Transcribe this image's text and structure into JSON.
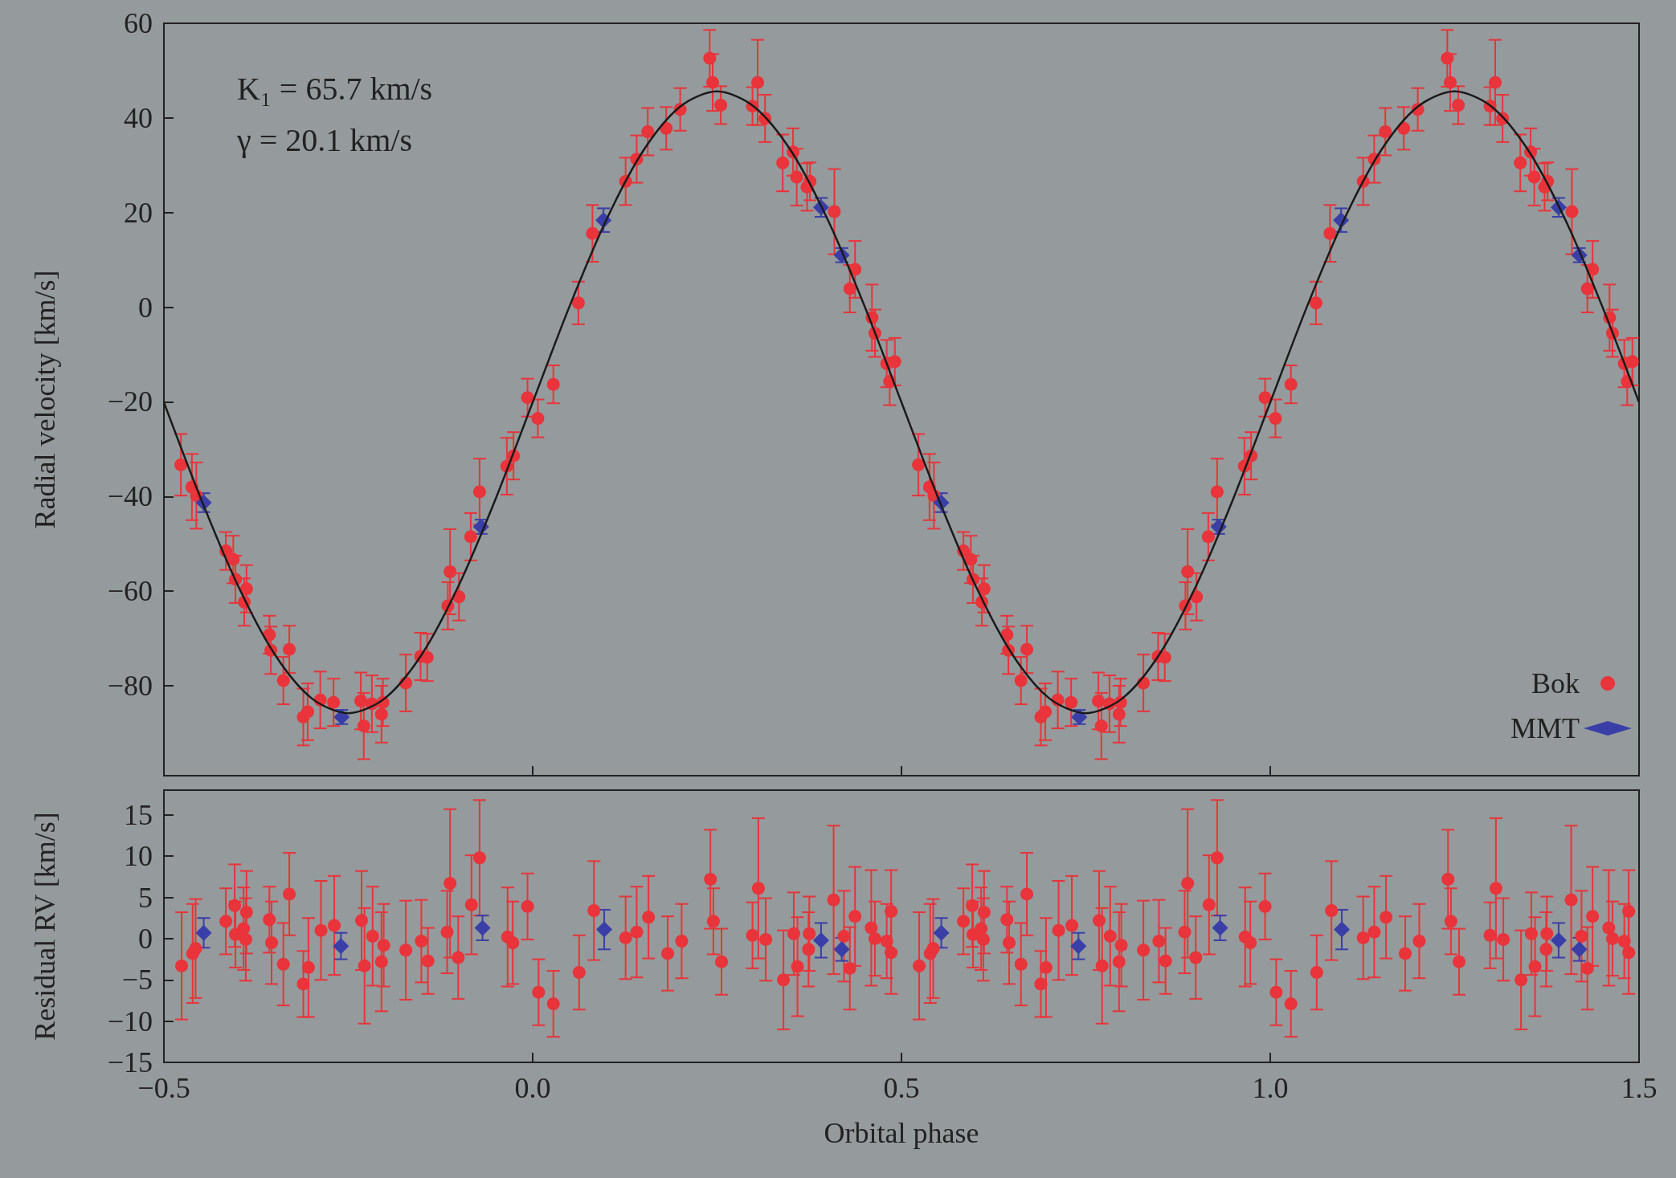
{
  "chart_data": [
    {
      "type": "scatter",
      "ylabel": "Radial velocity [km/s]",
      "annotations": [
        "K₁ = 65.7 km/s",
        "γ = 20.1 km/s"
      ],
      "legend": "bottom right",
      "tick_labels": "y",
      "xlim": [
        -0.5,
        1.5
      ],
      "xticks": [
        {
          "value": -0.5,
          "label": null
        },
        {
          "value": 0,
          "label": null
        },
        {
          "value": 0.5,
          "label": null
        },
        {
          "value": 1,
          "label": null
        },
        {
          "value": 1.5,
          "label": null
        }
      ],
      "ylim": [
        -99,
        60
      ],
      "yticks": [
        {
          "value": -80,
          "label": "−80"
        },
        {
          "value": -60,
          "label": "−60"
        },
        {
          "value": -40,
          "label": "−40"
        },
        {
          "value": -20,
          "label": "−20"
        },
        0,
        20,
        40,
        60
      ],
      "series": [
        {
          "type": "line",
          "color": "#1a1a1a",
          "x": [
            -0.5,
            -0.45,
            -0.4,
            -0.35,
            -0.3,
            -0.25,
            -0.2,
            -0.15,
            -0.1,
            -0.05,
            0,
            0.05,
            0.1,
            0.15,
            0.2,
            0.25,
            0.3,
            0.35,
            0.4,
            0.45,
            0.5,
            0.55,
            0.6,
            0.65,
            0.7,
            0.75,
            0.8,
            0.85,
            0.9,
            0.95,
            1,
            1.05,
            1.1,
            1.15,
            1.2,
            1.25,
            1.3,
            1.35,
            1.4,
            1.45,
            1.5
          ],
          "values": [
            -20.1,
            -40.4,
            -58.7,
            -73.3,
            -82.6,
            -85.8,
            -82.6,
            -73.3,
            -58.7,
            -40.4,
            -20.1,
            0.2,
            18.5,
            33.1,
            42.4,
            45.6,
            42.4,
            33.1,
            18.5,
            0.2,
            -20.1,
            -40.4,
            -58.7,
            -73.3,
            -82.6,
            -85.8,
            -82.6,
            -73.3,
            -58.7,
            -40.4,
            -20.1,
            0.2,
            18.5,
            33.1,
            42.4,
            45.6,
            42.4,
            33.1,
            18.5,
            0.2,
            -20.1
          ]
        },
        {
          "name": "Bok",
          "color": "#e8343a",
          "marker": "circle",
          "x": [
            -0.477,
            -0.462,
            -0.456,
            -0.416,
            -0.406,
            -0.403,
            -0.388,
            -0.391,
            -0.357,
            -0.355,
            -0.338,
            -0.33,
            -0.311,
            -0.305,
            -0.288,
            -0.27,
            -0.233,
            -0.229,
            -0.218,
            -0.205,
            -0.203,
            -0.172,
            -0.152,
            -0.143,
            -0.115,
            -0.112,
            -0.1,
            -0.084,
            -0.072,
            -0.035,
            -0.026,
            -0.007,
            0.007,
            0.028,
            0.062,
            0.081,
            0.126,
            0.141,
            0.156,
            0.181,
            0.2,
            0.24,
            0.244,
            0.255,
            0.298,
            0.305,
            0.315,
            0.339,
            0.353,
            0.358,
            0.372,
            0.376,
            0.409,
            0.437,
            0.43,
            0.46,
            0.464,
            0.48,
            0.491,
            0.484,
            0.523,
            0.538,
            0.544,
            0.584,
            0.594,
            0.597,
            0.612,
            0.609,
            0.643,
            0.645,
            0.662,
            0.67,
            0.689,
            0.695,
            0.712,
            0.73,
            0.767,
            0.771,
            0.782,
            0.795,
            0.797,
            0.828,
            0.848,
            0.857,
            0.885,
            0.888,
            0.9,
            0.916,
            0.928,
            0.965,
            0.974,
            0.993,
            1.007,
            1.028,
            1.062,
            1.081,
            1.126,
            1.141,
            1.156,
            1.181,
            1.2,
            1.24,
            1.244,
            1.255,
            1.298,
            1.305,
            1.315,
            1.339,
            1.353,
            1.358,
            1.372,
            1.376,
            1.409,
            1.437,
            1.43,
            1.46,
            1.464,
            1.48,
            1.491,
            1.484
          ],
          "values": [
            -33.3,
            -38.0,
            -39.8,
            -51.5,
            -53.3,
            -57.5,
            -59.5,
            -62.3,
            -69.2,
            -72.5,
            -78.9,
            -72.3,
            -86.6,
            -85.5,
            -83.0,
            -83.5,
            -83.2,
            -88.5,
            -83.8,
            -86.0,
            -83.5,
            -79.4,
            -73.8,
            -74.0,
            -63.1,
            -55.9,
            -61.2,
            -48.5,
            -39.0,
            -33.6,
            -31.4,
            -19.1,
            -23.5,
            -16.3,
            0.9,
            15.6,
            26.6,
            31.3,
            37.1,
            37.8,
            41.8,
            52.6,
            47.5,
            42.7,
            42.5,
            47.5,
            39.9,
            30.5,
            32.8,
            27.5,
            25.4,
            26.6,
            20.2,
            8.0,
            3.9,
            -2.2,
            -5.5,
            -11.9,
            -11.5,
            -15.7,
            -33.3,
            -38.0,
            -39.8,
            -51.5,
            -53.3,
            -57.5,
            -59.5,
            -62.3,
            -69.2,
            -72.5,
            -78.9,
            -72.3,
            -86.6,
            -85.5,
            -83.0,
            -83.5,
            -83.2,
            -88.5,
            -83.8,
            -86.0,
            -83.5,
            -79.4,
            -73.8,
            -74.0,
            -63.1,
            -55.9,
            -61.2,
            -48.5,
            -39.0,
            -33.6,
            -31.4,
            -19.1,
            -23.5,
            -16.3,
            0.9,
            15.6,
            26.6,
            31.3,
            37.1,
            37.8,
            41.8,
            52.6,
            47.5,
            42.7,
            42.5,
            47.5,
            39.9,
            30.5,
            32.8,
            27.5,
            25.4,
            26.6,
            20.2,
            8.0,
            3.9,
            -2.2,
            -5.5,
            -11.9,
            -11.5,
            -15.7
          ],
          "errors": [
            6.5,
            7,
            7,
            4,
            5,
            5,
            5,
            5,
            4,
            5,
            5,
            5,
            6,
            6,
            6,
            5,
            6,
            7,
            6,
            6,
            5,
            6,
            5,
            5,
            5,
            9,
            5,
            5,
            7,
            6,
            5,
            4,
            4,
            4,
            4.5,
            6,
            5,
            5,
            5,
            4.5,
            4.5,
            6,
            6,
            4,
            4,
            9,
            5,
            6,
            5,
            6,
            5,
            4,
            9,
            6,
            5,
            7,
            5,
            5,
            5,
            5,
            6.5,
            7,
            7,
            4,
            5,
            5,
            5,
            5,
            4,
            5,
            5,
            5,
            6,
            6,
            6,
            5,
            6,
            7,
            6,
            6,
            5,
            6,
            5,
            5,
            5,
            9,
            5,
            5,
            7,
            6,
            5,
            4,
            4,
            4,
            4.5,
            6,
            5,
            5,
            5,
            4.5,
            4.5,
            6,
            6,
            4,
            4,
            9,
            5,
            6,
            5,
            6,
            5,
            4,
            9,
            6,
            5,
            7,
            5,
            5,
            5,
            5
          ]
        },
        {
          "name": "MMT",
          "color": "#3a3fa8",
          "marker": "diamond",
          "x": [
            -0.446,
            -0.259,
            -0.07,
            0.096,
            0.391,
            0.419,
            0.554,
            0.741,
            0.93,
            1.096,
            1.391,
            1.419
          ],
          "values": [
            -41.3,
            -86.6,
            -46.4,
            18.4,
            21.1,
            11.0,
            -41.3,
            -86.6,
            -46.4,
            18.4,
            21.1,
            11.0
          ],
          "errors": [
            2,
            1.5,
            1.5,
            2.5,
            2,
            1.5,
            2,
            1.5,
            1.5,
            2.5,
            2,
            1.5
          ]
        }
      ]
    },
    {
      "type": "scatter",
      "ylabel": "Residual RV [km/s]",
      "xlabel": "Orbital phase",
      "xlim": [
        -0.5,
        1.5
      ],
      "xticks": [
        {
          "value": -0.5,
          "label": "−0.5"
        },
        {
          "value": 0,
          "label": "0.0"
        },
        {
          "value": 0.5,
          "label": "0.5"
        },
        {
          "value": 1,
          "label": "1.0"
        },
        {
          "value": 1.5,
          "label": "1.5"
        }
      ],
      "ylim": [
        -15,
        18
      ],
      "yticks": [
        {
          "value": -15,
          "label": "−15"
        },
        {
          "value": -10,
          "label": "−10"
        },
        {
          "value": -5,
          "label": "−5"
        },
        0,
        5,
        10,
        15
      ],
      "series": [
        {
          "color": "#e8343a",
          "marker": "circle",
          "x": [
            -0.476,
            -0.461,
            -0.457,
            -0.416,
            -0.404,
            -0.403,
            -0.392,
            -0.389,
            -0.388,
            -0.357,
            -0.354,
            -0.338,
            -0.33,
            -0.311,
            -0.304,
            -0.287,
            -0.269,
            -0.232,
            -0.228,
            -0.217,
            -0.205,
            -0.202,
            -0.172,
            -0.151,
            -0.142,
            -0.116,
            -0.112,
            -0.101,
            -0.083,
            -0.072,
            -0.034,
            -0.027,
            -0.007,
            0.008,
            0.028,
            0.063,
            0.083,
            0.126,
            0.141,
            0.157,
            0.183,
            0.202,
            0.241,
            0.245,
            0.256,
            0.298,
            0.306,
            0.316,
            0.34,
            0.354,
            0.359,
            0.374,
            0.375,
            0.408,
            0.422,
            0.43,
            0.437,
            0.459,
            0.464,
            0.48,
            0.486,
            0.486,
            0.524,
            0.539,
            0.543,
            0.584,
            0.596,
            0.597,
            0.608,
            0.611,
            0.612,
            0.643,
            0.646,
            0.662,
            0.67,
            0.689,
            0.696,
            0.713,
            0.731,
            0.768,
            0.772,
            0.783,
            0.795,
            0.798,
            0.828,
            0.849,
            0.858,
            0.884,
            0.888,
            0.899,
            0.917,
            0.928,
            0.966,
            0.973,
            0.993,
            1.008,
            1.028,
            1.063,
            1.083,
            1.126,
            1.141,
            1.157,
            1.183,
            1.202,
            1.241,
            1.245,
            1.256,
            1.298,
            1.306,
            1.316,
            1.34,
            1.354,
            1.359,
            1.374,
            1.375,
            1.408,
            1.422,
            1.43,
            1.437,
            1.459,
            1.464,
            1.48,
            1.486,
            1.486
          ],
          "values": [
            -3.3,
            -1.8,
            -1.2,
            2.1,
            4.0,
            0.5,
            1.2,
            -0.1,
            3.2,
            2.3,
            -0.5,
            -3.1,
            5.4,
            -5.5,
            -3.5,
            1.0,
            1.6,
            2.2,
            -3.3,
            0.3,
            -2.8,
            -0.8,
            -1.4,
            -0.3,
            -2.7,
            0.8,
            6.7,
            -2.3,
            4.1,
            9.8,
            0.2,
            -0.5,
            3.9,
            -6.5,
            -7.9,
            -4.1,
            3.4,
            0.1,
            0.8,
            2.6,
            -1.8,
            -0.3,
            7.2,
            2.1,
            -2.8,
            0.4,
            6.1,
            -0.1,
            -5.0,
            0.6,
            -3.4,
            -1.3,
            0.6,
            4.7,
            0.3,
            -3.6,
            2.7,
            1.3,
            0.0,
            -0.3,
            3.3,
            -1.7,
            -3.3,
            -1.8,
            -1.2,
            2.1,
            4.0,
            0.5,
            1.2,
            -0.1,
            3.2,
            2.3,
            -0.5,
            -3.1,
            5.4,
            -5.5,
            -3.5,
            1.0,
            1.6,
            2.2,
            -3.3,
            0.3,
            -2.8,
            -0.8,
            -1.4,
            -0.3,
            -2.7,
            0.8,
            6.7,
            -2.3,
            4.1,
            9.8,
            0.2,
            -0.5,
            3.9,
            -6.5,
            -7.9,
            -4.1,
            3.4,
            0.1,
            0.8,
            2.6,
            -1.8,
            -0.3,
            7.2,
            2.1,
            -2.8,
            0.4,
            6.1,
            -0.1,
            -5.0,
            0.6,
            -3.4,
            -1.3,
            0.6,
            4.7,
            0.3,
            -3.6,
            2.7,
            1.3,
            0.0,
            -0.3,
            3.3,
            -1.7
          ],
          "errors": [
            6.5,
            6,
            6,
            4,
            5,
            4,
            5,
            5,
            5,
            4,
            5,
            5,
            5,
            4,
            6,
            6,
            6,
            6,
            7,
            6,
            6,
            5,
            6,
            5,
            4,
            5,
            9,
            5,
            6,
            7,
            6,
            5,
            4,
            4,
            4,
            4.5,
            6,
            5,
            5.5,
            5,
            4.5,
            4.5,
            6,
            4,
            4,
            4,
            8.5,
            5,
            6,
            5,
            6,
            4.5,
            4.5,
            9,
            5.5,
            5,
            6,
            7,
            4.5,
            4.5,
            5,
            5,
            6.5,
            6,
            6,
            4,
            5,
            4,
            5,
            5,
            5,
            4,
            5,
            5,
            5,
            4,
            6,
            6,
            6,
            6,
            7,
            6,
            6,
            5,
            6,
            5,
            4,
            5,
            9,
            5,
            6,
            7,
            6,
            5,
            4,
            4,
            4,
            4.5,
            6,
            5,
            5.5,
            5,
            4.5,
            4.5,
            6,
            4,
            4,
            4,
            8.5,
            5,
            6,
            5,
            6,
            4.5,
            4.5,
            9,
            5.5,
            5,
            6,
            7,
            4.5,
            4.5,
            5,
            5
          ]
        },
        {
          "color": "#3a3fa8",
          "marker": "diamond",
          "x": [
            -0.446,
            -0.26,
            -0.068,
            0.097,
            0.391,
            0.419,
            0.554,
            0.74,
            0.932,
            1.097,
            1.391,
            1.419
          ],
          "values": [
            0.7,
            -0.9,
            1.3,
            1.1,
            -0.2,
            -1.3,
            0.7,
            -0.9,
            1.3,
            1.1,
            -0.2,
            -1.3
          ],
          "errors": [
            1.8,
            1.6,
            1.5,
            2.4,
            2.1,
            1.4,
            1.8,
            1.6,
            1.5,
            2.4,
            2.1,
            1.4
          ]
        }
      ]
    }
  ]
}
